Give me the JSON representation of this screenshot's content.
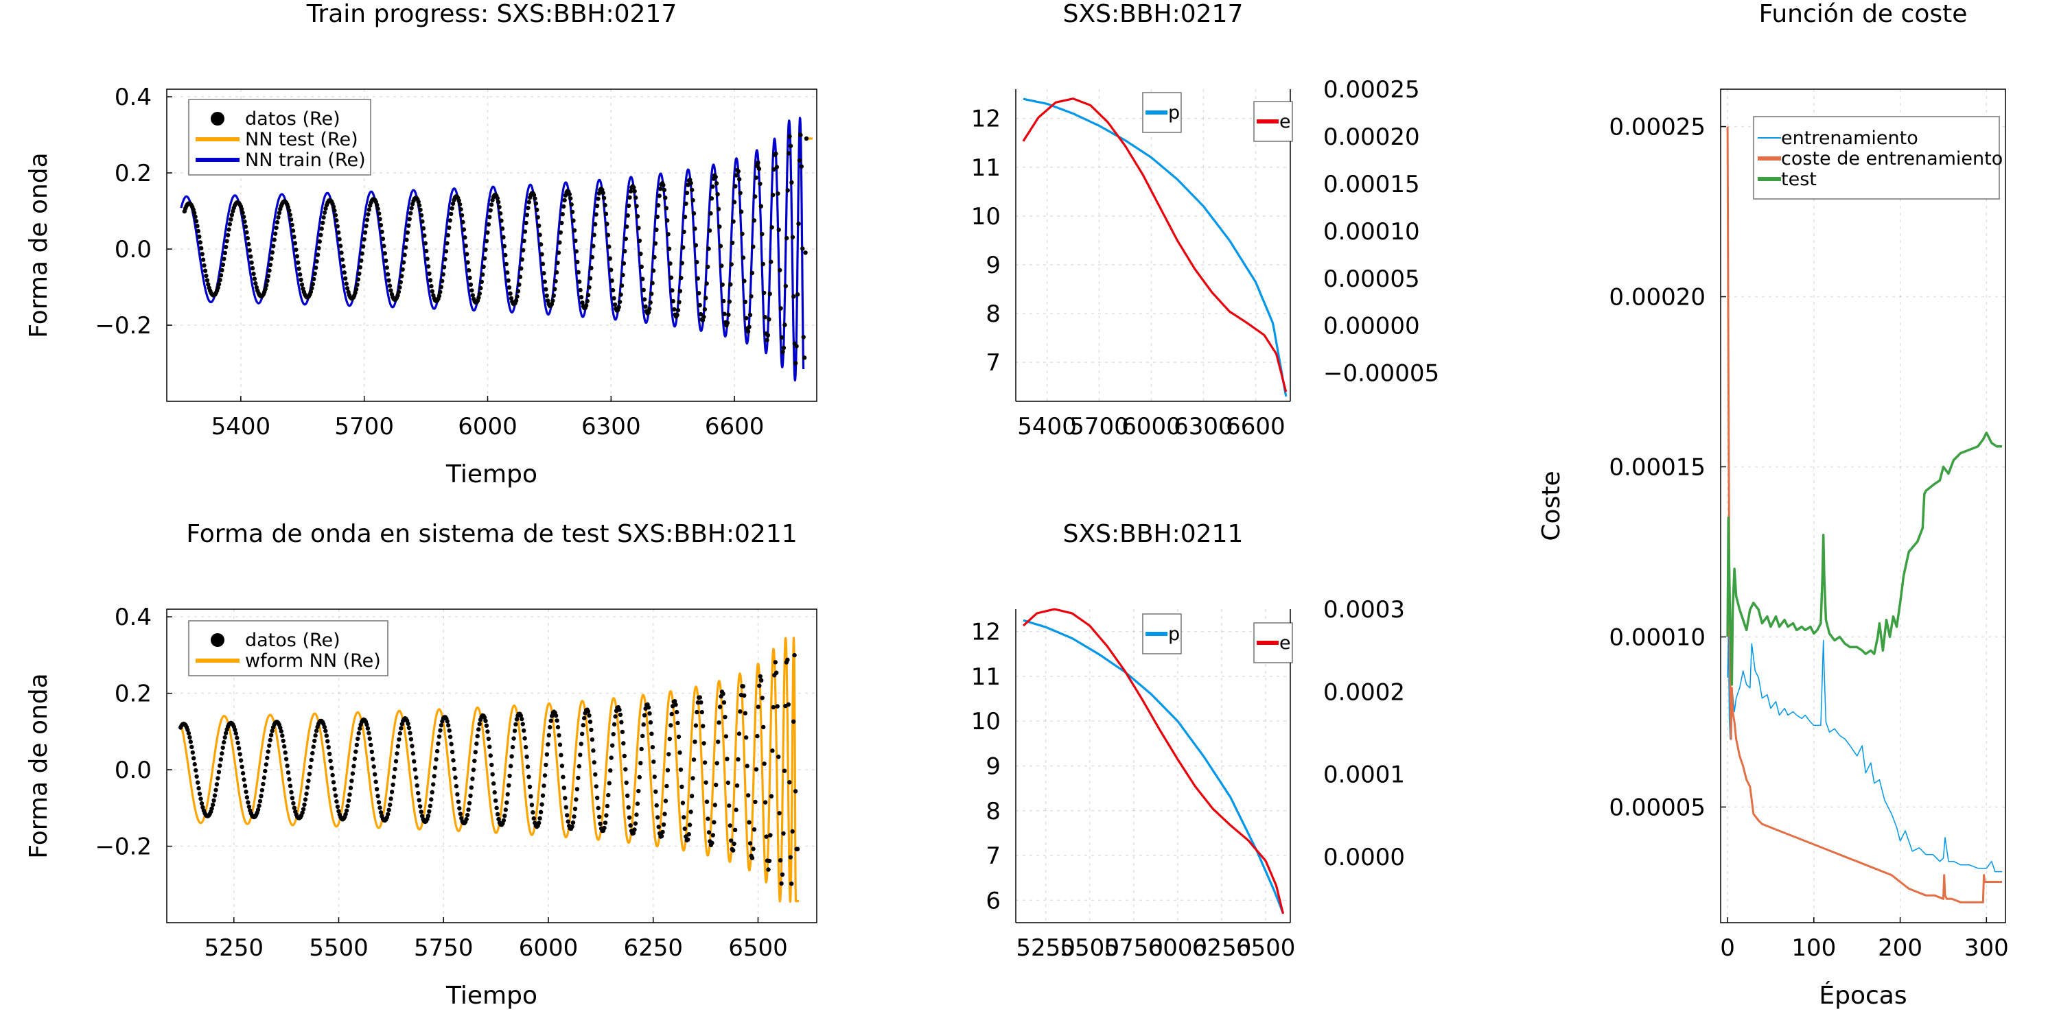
{
  "chart_data": [
    {
      "id": "train_progress",
      "type": "scatter+line",
      "title": "Train progress: SXS:BBH:0217",
      "xlabel": "Tiempo",
      "ylabel": "Forma de onda",
      "xlim": [
        5220,
        6800
      ],
      "ylim": [
        -0.4,
        0.42
      ],
      "xticks": [
        5400,
        5700,
        6000,
        6300,
        6600
      ],
      "yticks": [
        -0.2,
        0.0,
        0.2,
        0.4
      ],
      "ytick_labels": [
        "−0.2",
        "0.0",
        "0.2",
        "0.4"
      ],
      "grid": true,
      "legend_position": "top-left",
      "waveform": {
        "t_start": 5263,
        "t_merger": 6775,
        "phase0": -0.6,
        "n_cycles": 20.2,
        "amp_start": 0.12,
        "amp_end": 0.3
      },
      "series": [
        {
          "name": "datos (Re)",
          "kind": "points",
          "color": "#000000",
          "t_range": [
            5263,
            6775
          ],
          "amp_scale": 1.0,
          "phase_shift": 0.0
        },
        {
          "name": "NN test (Re)",
          "kind": "line",
          "color": "#FFA500",
          "t_range": [
            6776,
            6790
          ],
          "amp_scale": 1.0,
          "phase_shift": 0.0
        },
        {
          "name": "NN train (Re)",
          "kind": "line",
          "color": "#0000CD",
          "t_range": [
            5255,
            6768
          ],
          "amp_scale": 1.15,
          "phase_shift": 0.35
        }
      ]
    },
    {
      "id": "orbit_0217",
      "type": "line",
      "title": "SXS:BBH:0217",
      "xlim": [
        5220,
        6800
      ],
      "xticks": [
        5400,
        5700,
        6000,
        6300,
        6600
      ],
      "ylim_left": [
        6.2,
        12.6
      ],
      "yticks_left": [
        7,
        8,
        9,
        10,
        11,
        12
      ],
      "ylim_right": [
        -8e-05,
        0.00025
      ],
      "yticks_right": [
        -5e-05,
        0.0,
        5e-05,
        0.0001,
        0.00015,
        0.0002,
        0.00025
      ],
      "ytick_labels_right": [
        "−0.00005",
        "0.00000",
        "0.00005",
        "0.00010",
        "0.00015",
        "0.00020",
        "0.00025"
      ],
      "grid": true,
      "series": [
        {
          "name": "p",
          "axis": "left",
          "color": "#0097E8",
          "x": [
            5263,
            5400,
            5550,
            5700,
            5850,
            6000,
            6150,
            6300,
            6450,
            6600,
            6700,
            6775
          ],
          "y": [
            12.4,
            12.3,
            12.1,
            11.85,
            11.55,
            11.2,
            10.75,
            10.2,
            9.5,
            8.65,
            7.8,
            6.3
          ]
        },
        {
          "name": "e",
          "axis": "right",
          "color": "#E8000B",
          "x": [
            5263,
            5350,
            5450,
            5550,
            5650,
            5750,
            5850,
            5950,
            6050,
            6150,
            6250,
            6350,
            6450,
            6550,
            6650,
            6720,
            6775
          ],
          "y": [
            0.000195,
            0.00022,
            0.000236,
            0.00024,
            0.000233,
            0.000215,
            0.00019,
            0.00016,
            0.000125,
            9e-05,
            6e-05,
            3.5e-05,
            1.5e-05,
            3e-06,
            -1e-05,
            -3e-05,
            -7e-05
          ]
        }
      ]
    },
    {
      "id": "cost",
      "type": "line",
      "title": "Función de coste",
      "xlabel": "Épocas",
      "ylabel": "Coste",
      "xlim": [
        -8,
        322
      ],
      "ylim": [
        1.6e-05,
        0.000261
      ],
      "xticks": [
        0,
        100,
        200,
        300
      ],
      "yticks": [
        5e-05,
        0.0001,
        0.00015,
        0.0002,
        0.00025
      ],
      "ytick_labels": [
        "0.00005",
        "0.00010",
        "0.00015",
        "0.00020",
        "0.00025"
      ],
      "grid": true,
      "legend_position": "top-left",
      "series": [
        {
          "name": "entrenamiento",
          "color": "#0097E8",
          "width": 1.5,
          "x": [
            0,
            1,
            2,
            3,
            4,
            5,
            6,
            8,
            10,
            14,
            18,
            22,
            26,
            28,
            32,
            36,
            40,
            46,
            50,
            56,
            60,
            66,
            70,
            76,
            80,
            86,
            90,
            96,
            100,
            104,
            108,
            110,
            111,
            112,
            114,
            118,
            124,
            130,
            136,
            142,
            150,
            156,
            160,
            166,
            170,
            176,
            182,
            190,
            196,
            200,
            206,
            214,
            222,
            230,
            238,
            246,
            250,
            252,
            256,
            262,
            270,
            280,
            290,
            300,
            306,
            310,
            314,
            318
          ],
          "y": [
            8.8e-05,
            0.0001,
            7.6e-05,
            7e-05,
            8e-05,
            8.5e-05,
            8.3e-05,
            7.8e-05,
            8.2e-05,
            8.5e-05,
            9e-05,
            8.6e-05,
            8.5e-05,
            9.8e-05,
            9e-05,
            8.8e-05,
            8.2e-05,
            8.3e-05,
            7.9e-05,
            8.1e-05,
            7.7e-05,
            7.9e-05,
            7.7e-05,
            7.8e-05,
            7.7e-05,
            7.6e-05,
            7.7e-05,
            7.5e-05,
            7.4e-05,
            7.4e-05,
            7.4e-05,
            9e-05,
            9.9e-05,
            9e-05,
            7.5e-05,
            7.2e-05,
            7.3e-05,
            7.1e-05,
            7e-05,
            6.8e-05,
            6.5e-05,
            6.8e-05,
            6e-05,
            6.3e-05,
            5.7e-05,
            5.8e-05,
            5.2e-05,
            4.8e-05,
            4.4e-05,
            4e-05,
            4.3e-05,
            3.7e-05,
            3.8e-05,
            3.6e-05,
            3.6e-05,
            3.4e-05,
            3.5e-05,
            4.1e-05,
            3.4e-05,
            3.4e-05,
            3.3e-05,
            3.3e-05,
            3.2e-05,
            3.2e-05,
            3.4e-05,
            3.1e-05,
            3.1e-05,
            3.1e-05
          ]
        },
        {
          "name": "coste de entrenamiento",
          "color": "#E26F46",
          "width": 3,
          "x": [
            0,
            1,
            2,
            3,
            4,
            5,
            6,
            8,
            10,
            14,
            18,
            22,
            26,
            30,
            36,
            40,
            50,
            60,
            70,
            80,
            90,
            100,
            110,
            120,
            130,
            140,
            150,
            160,
            170,
            180,
            190,
            200,
            210,
            220,
            230,
            240,
            250,
            251,
            252,
            254,
            260,
            270,
            280,
            290,
            296,
            297,
            298,
            300,
            310,
            318
          ],
          "y": [
            0.00025,
            0.00018,
            0.00012,
            9e-05,
            7e-05,
            8.5e-05,
            7.8e-05,
            7.5e-05,
            7e-05,
            6.5e-05,
            6.2e-05,
            5.8e-05,
            5.6e-05,
            4.8e-05,
            4.6e-05,
            4.5e-05,
            4.4e-05,
            4.3e-05,
            4.2e-05,
            4.1e-05,
            4e-05,
            3.9e-05,
            3.8e-05,
            3.7e-05,
            3.6e-05,
            3.5e-05,
            3.4e-05,
            3.3e-05,
            3.2e-05,
            3.1e-05,
            3e-05,
            2.8e-05,
            2.6e-05,
            2.5e-05,
            2.4e-05,
            2.4e-05,
            2.3e-05,
            3e-05,
            2.4e-05,
            2.3e-05,
            2.3e-05,
            2.2e-05,
            2.2e-05,
            2.2e-05,
            2.2e-05,
            3e-05,
            2.8e-05,
            2.8e-05,
            2.8e-05,
            2.8e-05
          ]
        },
        {
          "name": "test",
          "color": "#3CA042",
          "width": 3.5,
          "x": [
            0,
            1,
            2,
            3,
            4,
            5,
            6,
            8,
            10,
            14,
            18,
            22,
            26,
            30,
            36,
            40,
            46,
            50,
            56,
            60,
            66,
            70,
            76,
            80,
            86,
            90,
            96,
            100,
            104,
            108,
            110,
            111,
            112,
            114,
            118,
            124,
            130,
            136,
            142,
            150,
            156,
            160,
            166,
            170,
            174,
            176,
            180,
            184,
            188,
            192,
            196,
            200,
            204,
            210,
            220,
            226,
            228,
            230,
            240,
            246,
            250,
            256,
            262,
            270,
            280,
            290,
            296,
            300,
            306,
            312,
            318
          ],
          "y": [
            0.0001,
            0.000135,
            0.000118,
            0.000105,
            9.8e-05,
            8.6e-05,
            0.000108,
            0.00012,
            0.000112,
            0.000108,
            0.000105,
            0.000102,
            0.000108,
            0.00011,
            0.000108,
            0.000104,
            0.000106,
            0.000103,
            0.000106,
            0.000103,
            0.000105,
            0.000103,
            0.000104,
            0.000102,
            0.000103,
            0.000102,
            0.000103,
            0.000101,
            0.000102,
            0.000104,
            0.000118,
            0.00013,
            0.000118,
            0.000105,
            0.000101,
            9.9e-05,
            0.0001,
            9.8e-05,
            9.7e-05,
            9.7e-05,
            9.6e-05,
            9.5e-05,
            9.6e-05,
            9.5e-05,
            0.0001,
            0.000104,
            9.6e-05,
            0.000105,
            0.0001,
            0.000106,
            0.000103,
            0.00011,
            0.000118,
            0.000125,
            0.000128,
            0.000132,
            0.000142,
            0.000143,
            0.000145,
            0.000146,
            0.00015,
            0.000148,
            0.000152,
            0.000154,
            0.000155,
            0.000156,
            0.000158,
            0.00016,
            0.000157,
            0.000156,
            0.000156
          ]
        }
      ]
    },
    {
      "id": "test_waveform",
      "type": "scatter+line",
      "title": "Forma de onda en sistema de test SXS:BBH:0211",
      "xlabel": "Tiempo",
      "ylabel": "Forma de onda",
      "xlim": [
        5090,
        6640
      ],
      "ylim": [
        -0.4,
        0.42
      ],
      "xticks": [
        5250,
        5500,
        5750,
        6000,
        6250,
        6500
      ],
      "yticks": [
        -0.2,
        0.0,
        0.2,
        0.4
      ],
      "ytick_labels": [
        "−0.2",
        "0.0",
        "0.2",
        "0.4"
      ],
      "grid": true,
      "legend_position": "top-left",
      "waveform": {
        "t_start": 5123,
        "t_merger": 6590,
        "phase0": -0.4,
        "n_cycles": 20.5,
        "amp_start": 0.12,
        "amp_end": 0.3
      },
      "series": [
        {
          "name": "datos (Re)",
          "kind": "points",
          "color": "#000000",
          "t_range": [
            5123,
            6595
          ],
          "amp_scale": 1.0,
          "phase_shift": 0.0
        },
        {
          "name": "wform NN (Re)",
          "kind": "line",
          "color": "#FFA500",
          "t_range": [
            5123,
            6598
          ],
          "amp_scale": 1.15,
          "phase_shift": 0.9
        }
      ]
    },
    {
      "id": "orbit_0211",
      "type": "line",
      "title": "SXS:BBH:0211",
      "xlim": [
        5080,
        6640
      ],
      "xticks": [
        5250,
        5500,
        5750,
        6000,
        6250,
        6500
      ],
      "ylim_left": [
        5.5,
        12.5
      ],
      "yticks_left": [
        6,
        7,
        8,
        9,
        10,
        11,
        12
      ],
      "ylim_right": [
        -8e-05,
        0.0003
      ],
      "yticks_right": [
        0.0,
        0.0001,
        0.0002,
        0.0003
      ],
      "ytick_labels_right": [
        "0.0000",
        "0.0001",
        "0.0002",
        "0.0003"
      ],
      "grid": true,
      "series": [
        {
          "name": "p",
          "axis": "left",
          "color": "#0097E8",
          "x": [
            5123,
            5250,
            5400,
            5550,
            5700,
            5850,
            6000,
            6150,
            6300,
            6450,
            6550,
            6600
          ],
          "y": [
            12.25,
            12.1,
            11.85,
            11.5,
            11.1,
            10.6,
            10.0,
            9.2,
            8.3,
            7.1,
            6.2,
            5.7
          ]
        },
        {
          "name": "e",
          "axis": "right",
          "color": "#E8000B",
          "x": [
            5123,
            5200,
            5300,
            5400,
            5500,
            5600,
            5700,
            5800,
            5900,
            6000,
            6100,
            6200,
            6300,
            6400,
            6500,
            6560,
            6600
          ],
          "y": [
            0.00028,
            0.000295,
            0.0003,
            0.000295,
            0.00028,
            0.000255,
            0.000225,
            0.00019,
            0.000153,
            0.000118,
            8.5e-05,
            5.8e-05,
            3.8e-05,
            2e-05,
            -5e-06,
            -3.5e-05,
            -7e-05
          ]
        }
      ]
    }
  ]
}
